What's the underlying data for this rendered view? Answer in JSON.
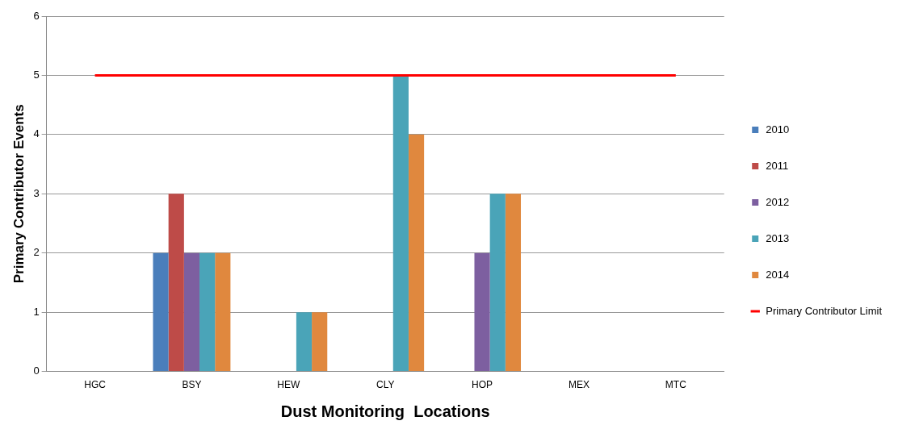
{
  "chart_data": {
    "type": "bar",
    "xlabel": "Dust Monitoring  Locations",
    "ylabel": "Primary Contributor Events",
    "categories": [
      "HGC",
      "BSY",
      "HEW",
      "CLY",
      "HOP",
      "MEX",
      "MTC"
    ],
    "series": [
      {
        "name": "2010",
        "color": "#4a7ebb",
        "values": [
          0,
          2,
          0,
          0,
          0,
          0,
          0
        ]
      },
      {
        "name": "2011",
        "color": "#be4b48",
        "values": [
          0,
          3,
          0,
          0,
          0,
          0,
          0
        ]
      },
      {
        "name": "2012",
        "color": "#7d5fa0",
        "values": [
          0,
          2,
          0,
          0,
          2,
          0,
          0
        ]
      },
      {
        "name": "2013",
        "color": "#4aa4b8",
        "values": [
          0,
          2,
          1,
          5,
          3,
          0,
          0
        ]
      },
      {
        "name": "2014",
        "color": "#e0883e",
        "values": [
          0,
          2,
          1,
          4,
          3,
          0,
          0
        ]
      }
    ],
    "ylim": [
      0,
      6
    ],
    "yticks": [
      0,
      1,
      2,
      3,
      4,
      5,
      6
    ],
    "grid": "y",
    "legend": "right",
    "ref_lines": [
      {
        "axis": "y",
        "value": 5,
        "label": "Primary Contributor Limit",
        "color": "#ff0000"
      }
    ]
  }
}
